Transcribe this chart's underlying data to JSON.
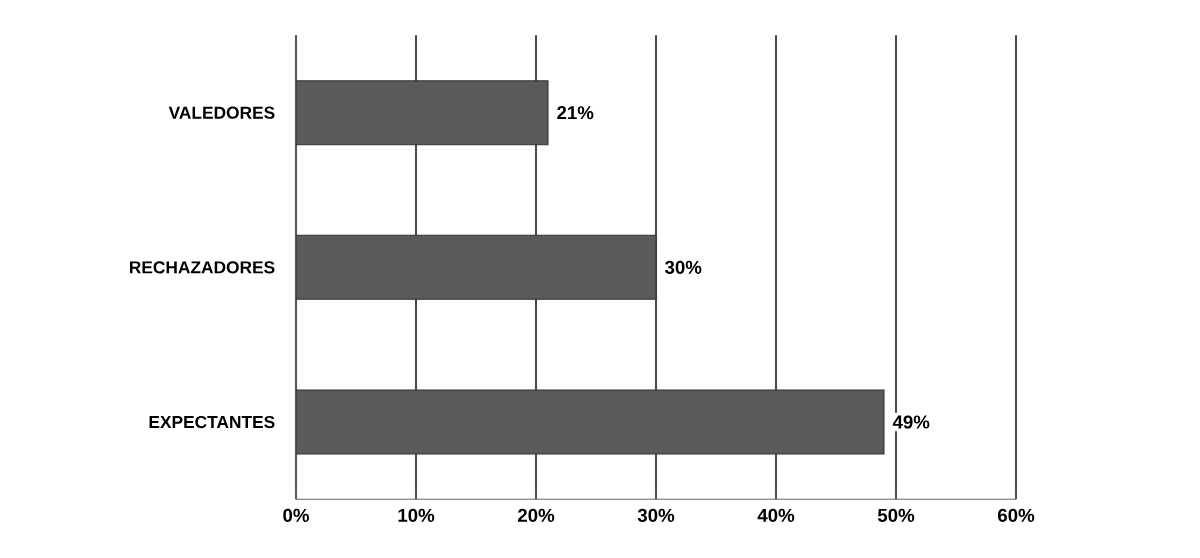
{
  "chart_data": {
    "type": "bar",
    "orientation": "horizontal",
    "categories": [
      "VALEDORES",
      "RECHAZADORES",
      "EXPECTANTES"
    ],
    "values": [
      21,
      30,
      49
    ],
    "value_labels": [
      "21%",
      "30%",
      "49%"
    ],
    "color": "#5a5a5a",
    "xlim": [
      0,
      60
    ],
    "xticks": [
      {
        "value": 0,
        "label": "0%"
      },
      {
        "value": 10,
        "label": "10%"
      },
      {
        "value": 20,
        "label": "20%"
      },
      {
        "value": 30,
        "label": "30%"
      },
      {
        "value": 40,
        "label": "40%"
      },
      {
        "value": 50,
        "label": "50%"
      },
      {
        "value": 60,
        "label": "60%"
      }
    ],
    "grid": "x"
  }
}
